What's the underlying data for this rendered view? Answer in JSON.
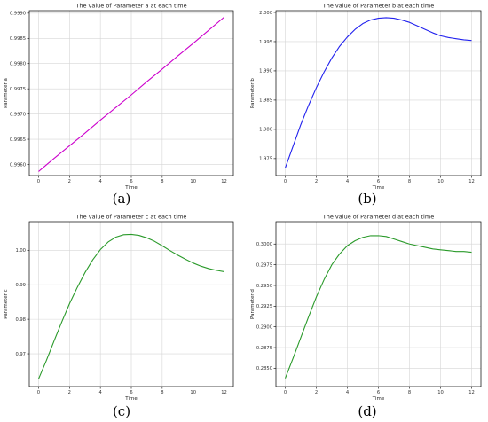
{
  "chart_data": [
    {
      "type": "line",
      "title": "The value of Parameter a at each time",
      "xlabel": "Time",
      "ylabel": "Parameter a",
      "caption": "(a)",
      "xlim": [
        -0.6,
        12.6
      ],
      "ylim": [
        0.99578,
        0.99905
      ],
      "xticks": [
        0,
        2,
        4,
        6,
        8,
        10,
        12
      ],
      "xtick_labels": [
        "0",
        "2",
        "4",
        "6",
        "8",
        "10",
        "12"
      ],
      "yticks": [
        0.996,
        0.9965,
        0.997,
        0.9975,
        0.998,
        0.9985,
        0.999
      ],
      "ytick_labels": [
        "0.9960",
        "0.9965",
        "0.9970",
        "0.9975",
        "0.9980",
        "0.9985",
        "0.9990"
      ],
      "grid": true,
      "color": "#cc00cc",
      "series": [
        {
          "x": [
            0,
            1,
            2,
            3,
            4,
            5,
            6,
            7,
            8,
            9,
            10,
            11,
            12
          ],
          "y": [
            0.99586,
            0.99612,
            0.99637,
            0.99662,
            0.99688,
            0.99713,
            0.99738,
            0.99764,
            0.99789,
            0.99815,
            0.9984,
            0.99866,
            0.99892
          ]
        }
      ]
    },
    {
      "type": "line",
      "title": "The value of Parameter b at each time",
      "xlabel": "Time",
      "ylabel": "Parameter b",
      "caption": "(b)",
      "xlim": [
        -0.6,
        12.6
      ],
      "ylim": [
        1.9721,
        2.0003
      ],
      "xticks": [
        0,
        2,
        4,
        6,
        8,
        10,
        12
      ],
      "xtick_labels": [
        "0",
        "2",
        "4",
        "6",
        "8",
        "10",
        "12"
      ],
      "yticks": [
        1.975,
        1.98,
        1.985,
        1.99,
        1.995,
        2.0
      ],
      "ytick_labels": [
        "1.975",
        "1.980",
        "1.985",
        "1.990",
        "1.995",
        "2.000"
      ],
      "grid": true,
      "color": "#2222ee",
      "series": [
        {
          "x": [
            0,
            0.5,
            1,
            1.5,
            2,
            2.5,
            3,
            3.5,
            4,
            4.5,
            5,
            5.5,
            6,
            6.5,
            7,
            7.5,
            8,
            8.5,
            9,
            9.5,
            10,
            10.5,
            11,
            11.5,
            12
          ],
          "y": [
            1.9734,
            1.9771,
            1.9808,
            1.9841,
            1.9871,
            1.9898,
            1.9922,
            1.9942,
            1.9958,
            1.9971,
            1.9981,
            1.9987,
            1.999,
            1.9991,
            1.999,
            1.9987,
            1.9983,
            1.9977,
            1.9971,
            1.9965,
            1.996,
            1.9957,
            1.9955,
            1.9953,
            1.9952
          ]
        }
      ]
    },
    {
      "type": "line",
      "title": "The value of Parameter c at each time",
      "xlabel": "Time",
      "ylabel": "Parameter c",
      "caption": "(c)",
      "xlim": [
        -0.6,
        12.6
      ],
      "ylim": [
        0.9605,
        1.0083
      ],
      "xticks": [
        0,
        2,
        4,
        6,
        8,
        10,
        12
      ],
      "xtick_labels": [
        "0",
        "2",
        "4",
        "6",
        "8",
        "10",
        "12"
      ],
      "yticks": [
        0.97,
        0.98,
        0.99,
        1.0
      ],
      "ytick_labels": [
        "0.97",
        "0.98",
        "0.99",
        "1.00"
      ],
      "grid": true,
      "color": "#2a9a2a",
      "series": [
        {
          "x": [
            0,
            0.5,
            1,
            1.5,
            2,
            2.5,
            3,
            3.5,
            4,
            4.5,
            5,
            5.5,
            6,
            6.5,
            7,
            7.5,
            8,
            8.5,
            9,
            9.5,
            10,
            10.5,
            11,
            11.5,
            12
          ],
          "y": [
            0.9627,
            0.968,
            0.9737,
            0.9792,
            0.9845,
            0.9892,
            0.9935,
            0.9972,
            1.0002,
            1.0024,
            1.0038,
            1.0045,
            1.0046,
            1.0043,
            1.0036,
            1.0026,
            1.0013,
            0.9999,
            0.9986,
            0.9974,
            0.9963,
            0.9954,
            0.9947,
            0.9942,
            0.9938
          ]
        }
      ]
    },
    {
      "type": "line",
      "title": "The value of Parameter d at each time",
      "xlabel": "Time",
      "ylabel": "Parameter d",
      "caption": "(d)",
      "xlim": [
        -0.6,
        12.6
      ],
      "ylim": [
        0.2828,
        0.3027
      ],
      "xticks": [
        0,
        2,
        4,
        6,
        8,
        10,
        12
      ],
      "xtick_labels": [
        "0",
        "2",
        "4",
        "6",
        "8",
        "10",
        "12"
      ],
      "yticks": [
        0.285,
        0.2875,
        0.29,
        0.2925,
        0.295,
        0.2975,
        0.3
      ],
      "ytick_labels": [
        "0.2850",
        "0.2875",
        "0.2900",
        "0.2925",
        "0.2950",
        "0.2975",
        "0.3000"
      ],
      "grid": true,
      "color": "#2a9a2a",
      "series": [
        {
          "x": [
            0,
            0.5,
            1,
            1.5,
            2,
            2.5,
            3,
            3.5,
            4,
            4.5,
            5,
            5.5,
            6,
            6.5,
            7,
            7.5,
            8,
            8.5,
            9,
            9.5,
            10,
            10.5,
            11,
            11.5,
            12
          ],
          "y": [
            0.2838,
            0.2862,
            0.2887,
            0.2912,
            0.2936,
            0.2957,
            0.2975,
            0.2988,
            0.2998,
            0.3004,
            0.3008,
            0.301,
            0.301,
            0.3009,
            0.3006,
            0.3003,
            0.3,
            0.2998,
            0.2996,
            0.2994,
            0.2993,
            0.2992,
            0.2991,
            0.2991,
            0.299
          ]
        }
      ]
    }
  ]
}
